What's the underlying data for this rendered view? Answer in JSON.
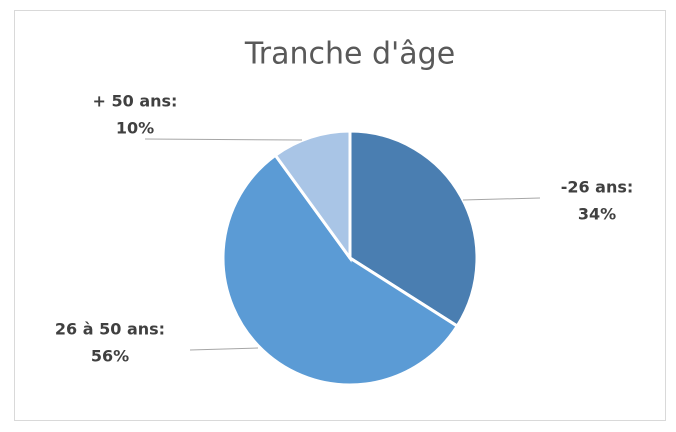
{
  "chart_data": {
    "type": "pie",
    "title": "Tranche d'âge",
    "categories": [
      "-26 ans:",
      "26 à 50 ans:",
      "+ 50 ans:"
    ],
    "values": [
      34,
      56,
      10
    ],
    "value_labels": [
      "34%",
      "56%",
      "10%"
    ],
    "colors": [
      "#4a7eb1",
      "#5b9bd5",
      "#a9c5e6"
    ]
  }
}
